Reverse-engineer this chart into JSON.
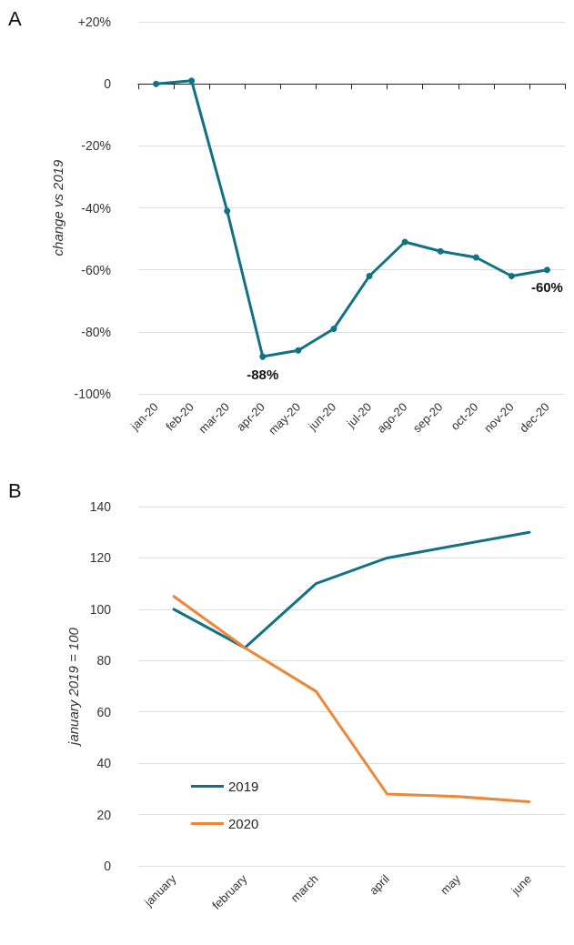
{
  "chart_data": [
    {
      "type": "line",
      "title": "A",
      "ylabel": "change vs 2019",
      "categories": [
        "jan-20",
        "feb-20",
        "mar-20",
        "apr-20",
        "may-20",
        "jun-20",
        "jul-20",
        "ago-20",
        "sep-20",
        "oct-20",
        "nov-20",
        "dec-20"
      ],
      "series": [
        {
          "color": "#117285",
          "values": [
            0,
            1,
            -41,
            -88,
            -86,
            -79,
            -62,
            -51,
            -54,
            -56,
            -62,
            -60
          ],
          "value_labels": [
            null,
            null,
            null,
            "-88%",
            null,
            null,
            null,
            null,
            null,
            null,
            null,
            "-60%"
          ]
        }
      ],
      "ylim": [
        -100,
        20
      ],
      "yticks": [
        {
          "value": -100,
          "label": "-100%"
        },
        {
          "value": -80,
          "label": "-80%"
        },
        {
          "value": -60,
          "label": "-60%"
        },
        {
          "value": -40,
          "label": "-40%"
        },
        {
          "value": -20,
          "label": "-20%"
        },
        0,
        {
          "value": 20,
          "label": "+20%"
        }
      ],
      "grid": "y",
      "marker": "circle",
      "line_style": "solid"
    },
    {
      "type": "line",
      "title": "B",
      "ylabel": "january 2019 = 100",
      "categories": [
        "january",
        "february",
        "march",
        "april",
        "may",
        "june"
      ],
      "series": [
        {
          "name": "2019",
          "color": "#117285",
          "values": [
            100,
            85,
            110,
            120,
            125,
            130
          ]
        },
        {
          "name": "2020",
          "color": "#ee8637",
          "values": [
            105,
            85,
            68,
            28,
            27,
            25
          ]
        }
      ],
      "ylim": [
        0,
        140
      ],
      "yticks": [
        0,
        20,
        40,
        60,
        80,
        100,
        120,
        140
      ],
      "grid": "y",
      "legend": "bottom left",
      "marker": "none",
      "line_style": "solid"
    }
  ]
}
